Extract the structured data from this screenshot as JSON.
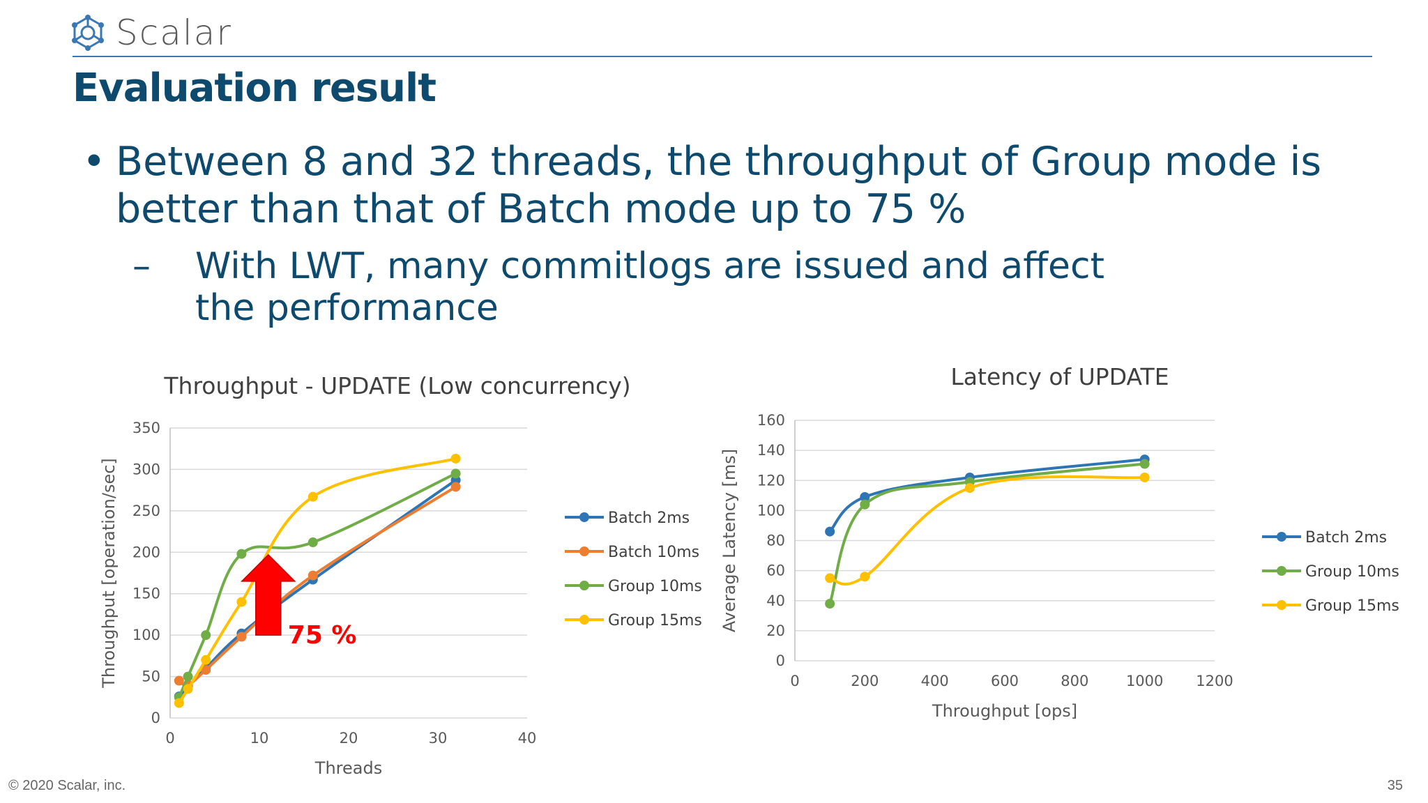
{
  "header": {
    "logo_text": "Scalar",
    "title": "Evaluation result"
  },
  "bullets": {
    "main": "Between 8 and 32 threads, the throughput of Group mode is better than that of Batch mode up to 75 %",
    "sub": "With LWT, many commitlogs are issued and affect the performance",
    "sub_marker": "–"
  },
  "footer": {
    "copyright": "© 2020 Scalar, inc.",
    "page_number": "35"
  },
  "colors": {
    "accent": "#0d4a6e",
    "batch2": "#2e75b6",
    "batch10": "#ed7d31",
    "group10": "#70ad47",
    "group15": "#ffc000",
    "arrow": "#ff0000"
  },
  "icons": {
    "logo": "scalar-logo-icon",
    "arrow": "up-arrow-icon"
  },
  "chart_data": [
    {
      "type": "line",
      "title": "Throughput - UPDATE (Low concurrency)",
      "xlabel": "Threads",
      "ylabel": "Throughput [operation/sec]",
      "xlim": [
        0,
        40
      ],
      "ylim": [
        0,
        350
      ],
      "xticks": [
        0,
        10,
        20,
        30,
        40
      ],
      "yticks": [
        0,
        50,
        100,
        150,
        200,
        250,
        300,
        350
      ],
      "grid": "horizontal",
      "legend": "right",
      "annotation": "75 %",
      "series": [
        {
          "name": "Batch 2ms",
          "color": "#2e75b6",
          "x": [
            1,
            2,
            4,
            8,
            16,
            32
          ],
          "y": [
            26,
            38,
            60,
            102,
            167,
            287
          ]
        },
        {
          "name": "Batch 10ms",
          "color": "#ed7d31",
          "x": [
            1,
            2,
            4,
            8,
            16,
            32
          ],
          "y": [
            45,
            40,
            58,
            98,
            172,
            279
          ]
        },
        {
          "name": "Group 10ms",
          "color": "#70ad47",
          "x": [
            1,
            2,
            4,
            8,
            16,
            32
          ],
          "y": [
            25,
            50,
            100,
            198,
            212,
            295
          ]
        },
        {
          "name": "Group 15ms",
          "color": "#ffc000",
          "x": [
            1,
            2,
            4,
            8,
            16,
            32
          ],
          "y": [
            18,
            35,
            70,
            140,
            267,
            313
          ]
        }
      ]
    },
    {
      "type": "line",
      "title": "Latency of UPDATE",
      "xlabel": "Throughput [ops]",
      "ylabel": "Average Latency [ms]",
      "xlim": [
        0,
        1200
      ],
      "ylim": [
        0,
        160
      ],
      "xticks": [
        0,
        200,
        400,
        600,
        800,
        1000,
        1200
      ],
      "yticks": [
        0,
        20,
        40,
        60,
        80,
        100,
        120,
        140,
        160
      ],
      "grid": "horizontal",
      "legend": "right",
      "series": [
        {
          "name": "Batch 2ms",
          "color": "#2e75b6",
          "x": [
            100,
            200,
            500,
            1000
          ],
          "y": [
            86,
            109,
            122,
            134
          ]
        },
        {
          "name": "Group 10ms",
          "color": "#70ad47",
          "x": [
            100,
            200,
            500,
            1000
          ],
          "y": [
            38,
            104,
            119,
            131
          ]
        },
        {
          "name": "Group 15ms",
          "color": "#ffc000",
          "x": [
            100,
            200,
            500,
            1000
          ],
          "y": [
            55,
            56,
            115,
            122
          ]
        }
      ]
    }
  ]
}
